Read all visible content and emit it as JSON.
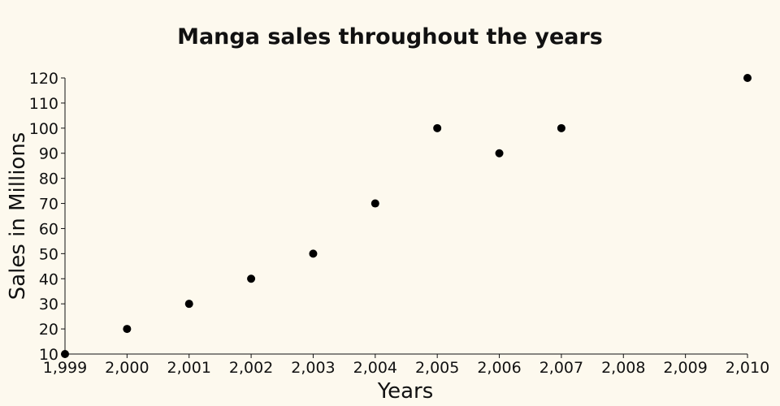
{
  "chart_data": {
    "type": "scatter",
    "title": "Manga sales throughout the years",
    "xlabel": "Years",
    "ylabel": "Sales in Millions",
    "xlim": [
      1999,
      2010
    ],
    "ylim": [
      10,
      120
    ],
    "x_ticks": [
      1999,
      2000,
      2001,
      2002,
      2003,
      2004,
      2005,
      2006,
      2007,
      2008,
      2009,
      2010
    ],
    "x_tick_labels": [
      "1,999",
      "2,000",
      "2,001",
      "2,002",
      "2,003",
      "2,004",
      "2,005",
      "2,006",
      "2,007",
      "2,008",
      "2,009",
      "2,010"
    ],
    "y_ticks": [
      10,
      20,
      30,
      40,
      50,
      60,
      70,
      80,
      90,
      100,
      110,
      120
    ],
    "y_tick_labels": [
      "10",
      "20",
      "30",
      "40",
      "50",
      "60",
      "70",
      "80",
      "90",
      "100",
      "110",
      "120"
    ],
    "grid": false,
    "point_color": "#000000",
    "points": [
      {
        "x": 1999,
        "y": 10
      },
      {
        "x": 2000,
        "y": 20
      },
      {
        "x": 2001,
        "y": 30
      },
      {
        "x": 2002,
        "y": 40
      },
      {
        "x": 2003,
        "y": 50
      },
      {
        "x": 2004,
        "y": 70
      },
      {
        "x": 2005,
        "y": 100
      },
      {
        "x": 2006,
        "y": 90
      },
      {
        "x": 2007,
        "y": 100
      },
      {
        "x": 2010,
        "y": 120
      }
    ]
  }
}
